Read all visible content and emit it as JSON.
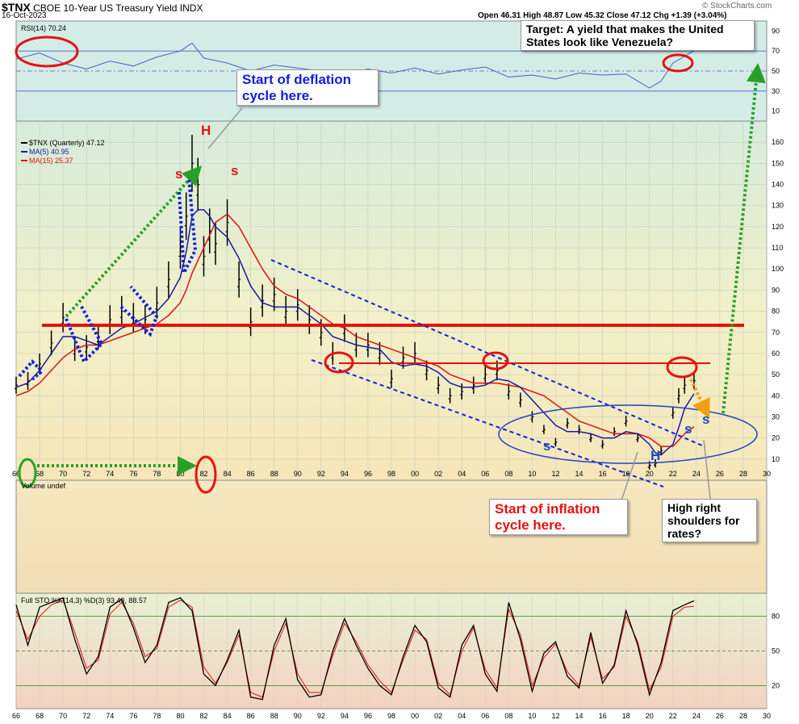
{
  "header": {
    "symbol": "$TNX",
    "name": "CBOE 10-Year US Treasury Yield INDX",
    "date": "16-Oct-2023",
    "ohlc": "Open 46.31  High 48.87  Low 45.32  Close 47.12  Chg +1.39 (+3.04%)",
    "watermark": "© StockCharts.com"
  },
  "colors": {
    "price": "#000000",
    "ma5": "#1a1aa0",
    "ma15": "#e01010",
    "rsi": "#4a5fc8",
    "annotation_red": "#e81010",
    "annotation_blue": "#1020e0",
    "annotation_green": "#28a028",
    "annotation_orange": "#f0a010"
  },
  "annotations": {
    "deflation": "Start of deflation cycle here.",
    "inflation": "Start of inflation cycle here.",
    "target": "Target:  A yield that makes the United States look like Venezuela?",
    "shoulders": "High right shoulders for rates?",
    "head_top": "H",
    "head_bottom": "H",
    "shoulder_label": "s"
  },
  "chart_data": [
    {
      "type": "line",
      "panel": "rsi",
      "title": "RSI(14) 70.24",
      "x": [
        1966,
        1968,
        1970,
        1972,
        1974,
        1976,
        1978,
        1980,
        1981,
        1982,
        1984,
        1986,
        1988,
        1990,
        1992,
        1994,
        1996,
        1998,
        2000,
        2002,
        2004,
        2006,
        2008,
        2010,
        2012,
        2014,
        2016,
        2018,
        2020,
        2021,
        2022,
        2023.8
      ],
      "values": [
        62,
        68,
        58,
        52,
        60,
        55,
        64,
        70,
        78,
        63,
        58,
        50,
        56,
        53,
        50,
        46,
        52,
        48,
        53,
        47,
        51,
        54,
        44,
        46,
        42,
        48,
        46,
        47,
        33,
        40,
        58,
        70.24
      ],
      "ylim": [
        0,
        100
      ],
      "ticks": [
        10,
        30,
        50,
        70,
        90
      ],
      "guides": [
        70,
        50,
        30
      ]
    },
    {
      "type": "line",
      "panel": "price",
      "title": "$TNX (Quarterly) 47.12",
      "legend": [
        {
          "name": "$TNX (Quarterly) 47.12"
        },
        {
          "name": "MA(5) 40.95"
        },
        {
          "name": "MA(15) 25.37"
        }
      ],
      "xlim": [
        1966,
        2030
      ],
      "ylim": [
        0,
        170
      ],
      "y_ticks": [
        10,
        20,
        30,
        40,
        50,
        60,
        70,
        80,
        90,
        100,
        110,
        120,
        130,
        140,
        150,
        160
      ],
      "x_ticks": [
        "66",
        "68",
        "70",
        "72",
        "74",
        "76",
        "78",
        "80",
        "82",
        "84",
        "86",
        "88",
        "90",
        "92",
        "94",
        "96",
        "98",
        "00",
        "02",
        "04",
        "06",
        "08",
        "10",
        "12",
        "14",
        "16",
        "18",
        "20",
        "22",
        "24",
        "26",
        "28",
        "30"
      ],
      "x": [
        1966,
        1967,
        1968,
        1969,
        1970,
        1971,
        1972,
        1973,
        1974,
        1975,
        1976,
        1977,
        1978,
        1979,
        1980,
        1980.5,
        1981,
        1981.5,
        1982,
        1982.5,
        1983,
        1984,
        1985,
        1986,
        1987,
        1988,
        1989,
        1990,
        1991,
        1992,
        1993,
        1994,
        1995,
        1996,
        1997,
        1998,
        1999,
        2000,
        2001,
        2002,
        2003,
        2004,
        2005,
        2006,
        2007,
        2008,
        2009,
        2010,
        2011,
        2012,
        2013,
        2014,
        2015,
        2016,
        2017,
        2018,
        2019,
        2020,
        2020.5,
        2021,
        2022,
        2022.5,
        2023,
        2023.8
      ],
      "series": [
        {
          "name": "$TNX",
          "values": [
            45,
            47,
            55,
            65,
            77,
            62,
            63,
            68,
            76,
            80,
            77,
            76,
            84,
            95,
            110,
            125,
            150,
            140,
            106,
            118,
            112,
            122,
            95,
            75,
            85,
            88,
            80,
            83,
            76,
            70,
            60,
            72,
            64,
            64,
            60,
            48,
            58,
            60,
            52,
            45,
            40,
            42,
            45,
            50,
            52,
            42,
            38,
            30,
            24,
            18,
            27,
            24,
            20,
            17,
            23,
            28,
            20,
            7,
            8,
            14,
            32,
            40,
            45,
            47.12
          ]
        },
        {
          "name": "MA(5)",
          "values": [
            44,
            46,
            52,
            60,
            68,
            68,
            66,
            64,
            68,
            72,
            74,
            77,
            80,
            86,
            96,
            108,
            125,
            128,
            128,
            125,
            120,
            115,
            105,
            92,
            84,
            82,
            82,
            82,
            78,
            74,
            68,
            66,
            64,
            63,
            62,
            56,
            54,
            55,
            54,
            51,
            46,
            44,
            44,
            45,
            48,
            47,
            44,
            38,
            32,
            26,
            23,
            23,
            22,
            20,
            20,
            23,
            22,
            17,
            13,
            12,
            17,
            25,
            34,
            40.95
          ]
        },
        {
          "name": "MA(15)",
          "values": [
            40,
            42,
            46,
            52,
            58,
            62,
            64,
            64,
            66,
            68,
            70,
            72,
            74,
            78,
            84,
            90,
            98,
            104,
            110,
            116,
            122,
            126,
            120,
            110,
            100,
            92,
            88,
            86,
            82,
            78,
            74,
            72,
            68,
            66,
            64,
            62,
            60,
            58,
            56,
            54,
            50,
            48,
            46,
            46,
            46,
            45,
            44,
            42,
            40,
            36,
            32,
            28,
            26,
            24,
            22,
            22,
            22,
            20,
            18,
            16,
            16,
            19,
            22,
            25.37
          ]
        }
      ]
    },
    {
      "type": "line",
      "panel": "volume",
      "title": "Volume undef"
    },
    {
      "type": "line",
      "panel": "stochastic",
      "title": "Full STO %K(14,3) %D(3) 93.40, 88.57",
      "ylim": [
        0,
        100
      ],
      "y_ticks": [
        20,
        50,
        80
      ],
      "guides": [
        80,
        50,
        20
      ],
      "x": [
        1966,
        1967,
        1968,
        1969,
        1970,
        1971,
        1972,
        1973,
        1974,
        1975,
        1976,
        1977,
        1978,
        1979,
        1980,
        1981,
        1982,
        1983,
        1984,
        1985,
        1986,
        1987,
        1988,
        1989,
        1990,
        1991,
        1992,
        1993,
        1994,
        1995,
        1996,
        1997,
        1998,
        1999,
        2000,
        2001,
        2002,
        2003,
        2004,
        2005,
        2006,
        2007,
        2008,
        2009,
        2010,
        2011,
        2012,
        2013,
        2014,
        2015,
        2016,
        2017,
        2018,
        2019,
        2020,
        2021,
        2022,
        2023,
        2023.8
      ],
      "series": [
        {
          "name": "%K",
          "values": [
            90,
            55,
            88,
            92,
            96,
            60,
            30,
            45,
            88,
            95,
            70,
            40,
            55,
            92,
            96,
            85,
            30,
            20,
            42,
            68,
            10,
            8,
            55,
            78,
            25,
            10,
            12,
            50,
            78,
            55,
            35,
            20,
            12,
            45,
            72,
            58,
            18,
            10,
            55,
            72,
            30,
            15,
            92,
            60,
            15,
            48,
            58,
            28,
            18,
            66,
            22,
            38,
            85,
            55,
            12,
            40,
            85,
            90,
            93.4
          ]
        },
        {
          "name": "%D",
          "values": [
            85,
            60,
            80,
            90,
            94,
            66,
            35,
            42,
            82,
            92,
            74,
            45,
            52,
            88,
            94,
            88,
            36,
            22,
            40,
            64,
            14,
            10,
            50,
            74,
            30,
            14,
            14,
            46,
            74,
            58,
            38,
            24,
            14,
            42,
            68,
            60,
            22,
            12,
            50,
            70,
            34,
            18,
            86,
            64,
            20,
            44,
            56,
            32,
            20,
            62,
            26,
            36,
            80,
            58,
            16,
            36,
            80,
            88,
            88.57
          ]
        }
      ]
    }
  ]
}
